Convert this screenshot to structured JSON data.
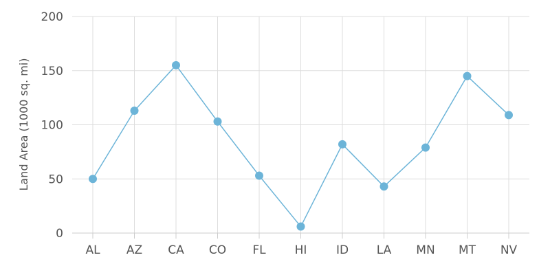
{
  "colors": {
    "series": "#6cb4d8",
    "marker": "#6cb4d8",
    "grid": "#dddddd",
    "axis_text": "#555555"
  },
  "chart_data": {
    "type": "line",
    "categories": [
      "AL",
      "AZ",
      "CA",
      "CO",
      "FL",
      "HI",
      "ID",
      "LA",
      "MN",
      "MT",
      "NV"
    ],
    "series": [
      {
        "values": [
          50,
          113,
          155,
          103,
          53,
          6,
          82,
          43,
          79,
          145,
          109
        ]
      }
    ],
    "title": "",
    "xlabel": "",
    "ylabel": "Land Area (1000 sq. mi)",
    "ylim": [
      0,
      200
    ],
    "yticks": [
      "0",
      "50",
      "100",
      "150",
      "200"
    ],
    "grid": true,
    "legend": "none"
  }
}
